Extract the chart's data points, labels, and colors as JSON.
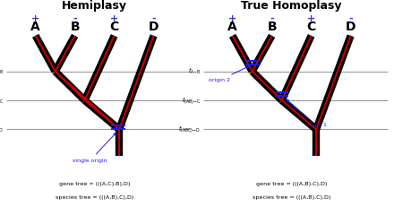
{
  "left_title": "Hemiplasy",
  "right_title": "True Homoplasy",
  "left_gene_tree": "gene tree = (((A,C),B),D)",
  "left_species_tree": "species tree = (((A,B),C),D)",
  "right_gene_tree": "gene tree = (((A,B),C),D)",
  "right_species_tree": "species tree = (((A,B),C),D)",
  "black": "#000000",
  "red": "#cc0000",
  "blue": "#1a1aff",
  "darkblue": "#0000aa",
  "gray": "#999999",
  "plusminus_color": "#3333cc",
  "lw_thick": 6.0,
  "lw_red": 1.4,
  "lw_gray": 0.8
}
